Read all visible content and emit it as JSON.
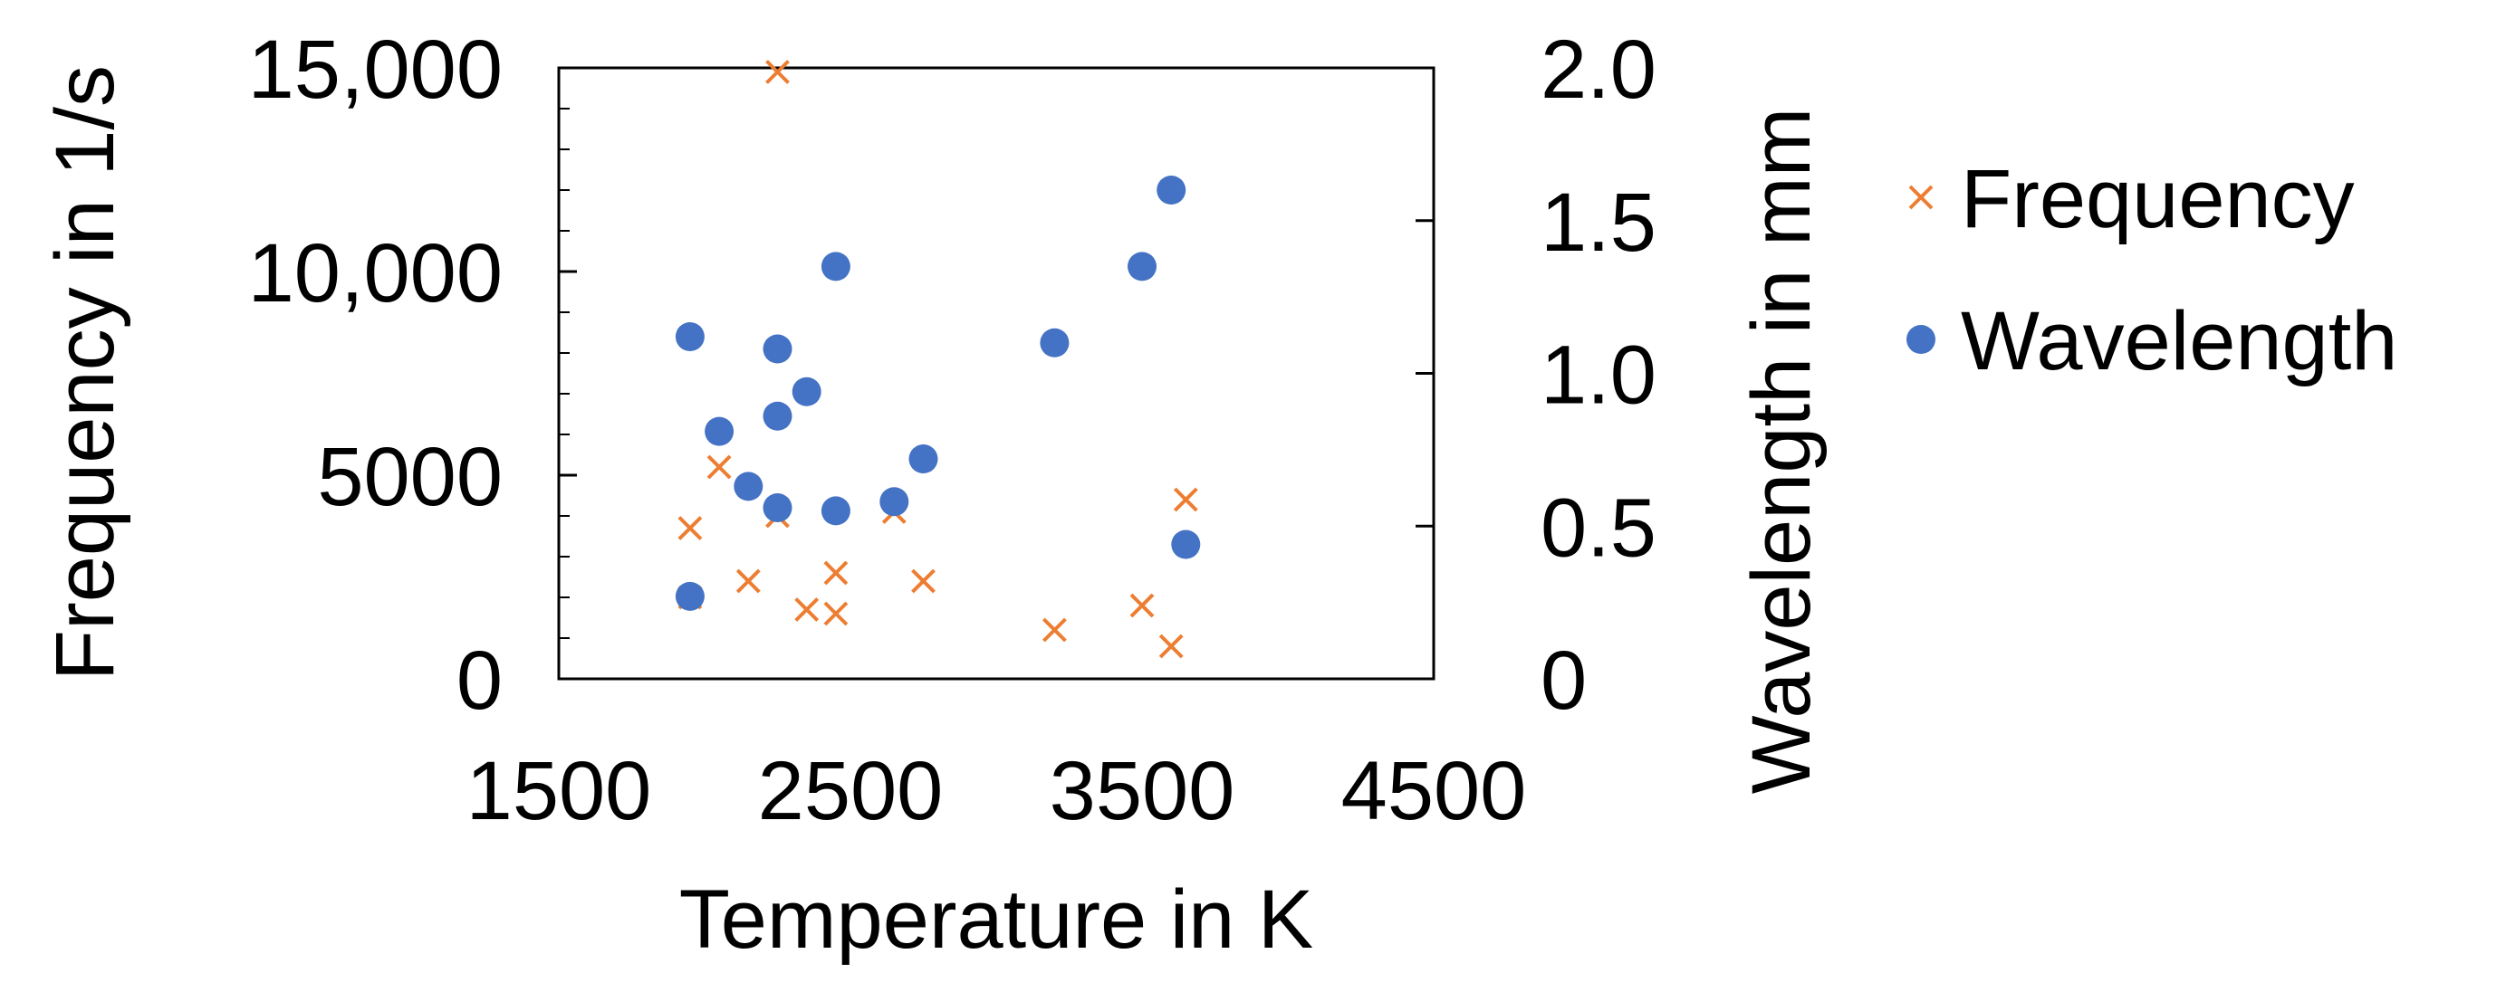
{
  "chart_data": {
    "type": "scatter",
    "title": "",
    "xlabel": "Temperature in K",
    "ylabel_left": "Frequency in 1/s",
    "ylabel_right": "Wavelength in mm",
    "xlim": [
      1500,
      4500
    ],
    "ylim_left": [
      0,
      15000
    ],
    "ylim_right": [
      0,
      2.0
    ],
    "x_ticks": [
      1500,
      2500,
      3500,
      4500
    ],
    "x_tick_labels": [
      "1500",
      "2500",
      "3500",
      "4500"
    ],
    "y_left_ticks": [
      0,
      5000,
      10000,
      15000
    ],
    "y_left_tick_labels": [
      "0",
      "5000",
      "10,000",
      "15,000"
    ],
    "y_right_ticks": [
      0,
      0.5,
      1.0,
      1.5,
      2.0
    ],
    "y_right_tick_labels": [
      "0",
      "0.5",
      "1.0",
      "1.5",
      "2.0"
    ],
    "grid": false,
    "legend_position": "right",
    "series": [
      {
        "name": "Frequency",
        "axis": "left",
        "marker": "x",
        "color": "#ED7D31",
        "points": [
          {
            "x": 1950,
            "y": 2000
          },
          {
            "x": 1950,
            "y": 3700
          },
          {
            "x": 2050,
            "y": 5200
          },
          {
            "x": 2150,
            "y": 2400
          },
          {
            "x": 2250,
            "y": 4000
          },
          {
            "x": 2250,
            "y": 14900
          },
          {
            "x": 2350,
            "y": 1700
          },
          {
            "x": 2450,
            "y": 1600
          },
          {
            "x": 2450,
            "y": 2600
          },
          {
            "x": 2650,
            "y": 4100
          },
          {
            "x": 2750,
            "y": 2400
          },
          {
            "x": 3200,
            "y": 1200
          },
          {
            "x": 3500,
            "y": 1800
          },
          {
            "x": 3600,
            "y": 800
          },
          {
            "x": 3650,
            "y": 4400
          }
        ]
      },
      {
        "name": "Wavelength",
        "axis": "right",
        "marker": "circle",
        "color": "#4472C4",
        "points": [
          {
            "x": 1950,
            "y": 1.12
          },
          {
            "x": 1950,
            "y": 0.27
          },
          {
            "x": 2050,
            "y": 0.81
          },
          {
            "x": 2150,
            "y": 0.63
          },
          {
            "x": 2250,
            "y": 1.08
          },
          {
            "x": 2250,
            "y": 0.86
          },
          {
            "x": 2250,
            "y": 0.56
          },
          {
            "x": 2350,
            "y": 0.94
          },
          {
            "x": 2450,
            "y": 1.35
          },
          {
            "x": 2450,
            "y": 0.55
          },
          {
            "x": 2650,
            "y": 0.58
          },
          {
            "x": 2750,
            "y": 0.72
          },
          {
            "x": 3200,
            "y": 1.1
          },
          {
            "x": 3500,
            "y": 1.35
          },
          {
            "x": 3600,
            "y": 1.6
          },
          {
            "x": 3650,
            "y": 0.44
          }
        ]
      }
    ]
  }
}
